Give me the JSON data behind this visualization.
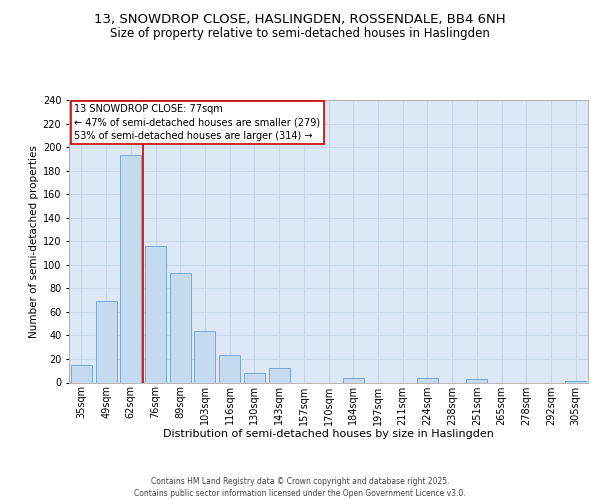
{
  "title_line1": "13, SNOWDROP CLOSE, HASLINGDEN, ROSSENDALE, BB4 6NH",
  "title_line2": "Size of property relative to semi-detached houses in Haslingden",
  "xlabel": "Distribution of semi-detached houses by size in Haslingden",
  "ylabel": "Number of semi-detached properties",
  "categories": [
    "35sqm",
    "49sqm",
    "62sqm",
    "76sqm",
    "89sqm",
    "103sqm",
    "116sqm",
    "130sqm",
    "143sqm",
    "157sqm",
    "170sqm",
    "184sqm",
    "197sqm",
    "211sqm",
    "224sqm",
    "238sqm",
    "251sqm",
    "265sqm",
    "278sqm",
    "292sqm",
    "305sqm"
  ],
  "values": [
    15,
    69,
    193,
    116,
    93,
    44,
    23,
    8,
    12,
    0,
    0,
    4,
    0,
    0,
    4,
    0,
    3,
    0,
    0,
    0,
    1
  ],
  "bar_color": "#c5d9ef",
  "bar_edge_color": "#6a9fd4",
  "vline_color": "#cc0000",
  "vline_position": 2.5,
  "annotation_text": "13 SNOWDROP CLOSE: 77sqm\n← 47% of semi-detached houses are smaller (279)\n53% of semi-detached houses are larger (314) →",
  "annotation_box_color": "#ffffff",
  "annotation_box_edge": "#cc0000",
  "ylim": [
    0,
    240
  ],
  "yticks": [
    0,
    20,
    40,
    60,
    80,
    100,
    120,
    140,
    160,
    180,
    200,
    220,
    240
  ],
  "background_color": "#dce8f5",
  "grid_color": "#c8d8e8",
  "footer": "Contains HM Land Registry data © Crown copyright and database right 2025.\nContains public sector information licensed under the Open Government Licence v3.0.",
  "title_fontsize": 9.5,
  "subtitle_fontsize": 8.5,
  "annotation_fontsize": 7.0,
  "xlabel_fontsize": 8.0,
  "ylabel_fontsize": 7.5,
  "tick_fontsize": 7.0,
  "footer_fontsize": 5.5
}
